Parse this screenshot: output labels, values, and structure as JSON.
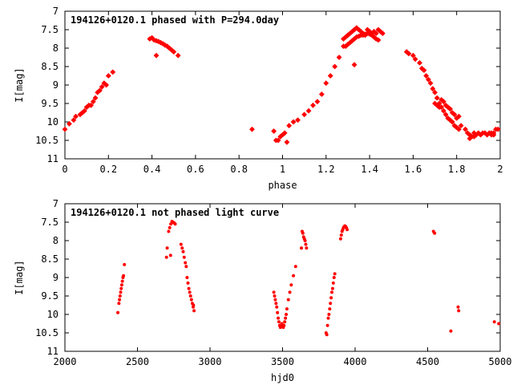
{
  "chart_data": [
    {
      "type": "scatter",
      "title": "194126+0120.1 phased with P=294.0day",
      "xlabel": "phase",
      "ylabel": "I[mag]",
      "xlim": [
        0,
        2
      ],
      "ylim": [
        11,
        7
      ],
      "y_inverted": true,
      "xticks": [
        0,
        0.2,
        0.4,
        0.6,
        0.8,
        1,
        1.2,
        1.4,
        1.6,
        1.8,
        2
      ],
      "xtick_labels": [
        "0",
        "0.2",
        "0.4",
        "0.6",
        "0.8",
        "1",
        "1.2",
        "1.4",
        "1.6",
        "1.8",
        "2"
      ],
      "yticks": [
        7,
        7.5,
        8,
        8.5,
        9,
        9.5,
        10,
        10.5,
        11
      ],
      "ytick_labels": [
        "7",
        "7.5",
        "8",
        "8.5",
        "9",
        "9.5",
        "10",
        "10.5",
        "11"
      ],
      "grid": false,
      "marker_color": "#ff0000",
      "marker": "star",
      "points": [
        [
          0.0,
          10.2
        ],
        [
          0.02,
          10.05
        ],
        [
          0.04,
          9.95
        ],
        [
          0.05,
          9.85
        ],
        [
          0.07,
          9.8
        ],
        [
          0.08,
          9.75
        ],
        [
          0.09,
          9.7
        ],
        [
          0.1,
          9.6
        ],
        [
          0.11,
          9.55
        ],
        [
          0.12,
          9.55
        ],
        [
          0.13,
          9.45
        ],
        [
          0.14,
          9.35
        ],
        [
          0.15,
          9.2
        ],
        [
          0.16,
          9.15
        ],
        [
          0.17,
          9.05
        ],
        [
          0.18,
          8.95
        ],
        [
          0.19,
          9.0
        ],
        [
          0.2,
          8.75
        ],
        [
          0.22,
          8.65
        ],
        [
          0.39,
          7.75
        ],
        [
          0.4,
          7.72
        ],
        [
          0.41,
          7.78
        ],
        [
          0.42,
          7.8
        ],
        [
          0.43,
          7.82
        ],
        [
          0.44,
          7.85
        ],
        [
          0.45,
          7.88
        ],
        [
          0.46,
          7.92
        ],
        [
          0.47,
          7.95
        ],
        [
          0.48,
          8.0
        ],
        [
          0.49,
          8.05
        ],
        [
          0.5,
          8.1
        ],
        [
          0.52,
          8.2
        ],
        [
          0.42,
          8.2
        ],
        [
          0.86,
          10.2
        ],
        [
          0.96,
          10.25
        ],
        [
          0.97,
          10.5
        ],
        [
          0.98,
          10.5
        ],
        [
          0.99,
          10.4
        ],
        [
          1.0,
          10.35
        ],
        [
          1.01,
          10.3
        ],
        [
          1.02,
          10.55
        ],
        [
          1.03,
          10.1
        ],
        [
          1.05,
          10.0
        ],
        [
          1.07,
          9.95
        ],
        [
          1.1,
          9.8
        ],
        [
          1.12,
          9.7
        ],
        [
          1.14,
          9.55
        ],
        [
          1.16,
          9.45
        ],
        [
          1.18,
          9.25
        ],
        [
          1.2,
          8.95
        ],
        [
          1.22,
          8.75
        ],
        [
          1.24,
          8.5
        ],
        [
          1.26,
          8.25
        ],
        [
          1.28,
          7.75
        ],
        [
          1.29,
          7.7
        ],
        [
          1.3,
          7.65
        ],
        [
          1.31,
          7.6
        ],
        [
          1.32,
          7.55
        ],
        [
          1.33,
          7.5
        ],
        [
          1.34,
          7.45
        ],
        [
          1.35,
          7.5
        ],
        [
          1.36,
          7.55
        ],
        [
          1.37,
          7.6
        ],
        [
          1.38,
          7.65
        ],
        [
          1.39,
          7.5
        ],
        [
          1.4,
          7.55
        ],
        [
          1.41,
          7.6
        ],
        [
          1.42,
          7.55
        ],
        [
          1.43,
          7.6
        ],
        [
          1.44,
          7.5
        ],
        [
          1.45,
          7.55
        ],
        [
          1.46,
          7.6
        ],
        [
          1.28,
          7.95
        ],
        [
          1.29,
          7.95
        ],
        [
          1.3,
          7.9
        ],
        [
          1.31,
          7.85
        ],
        [
          1.32,
          7.8
        ],
        [
          1.33,
          7.75
        ],
        [
          1.34,
          7.7
        ],
        [
          1.35,
          7.68
        ],
        [
          1.36,
          7.65
        ],
        [
          1.37,
          7.65
        ],
        [
          1.38,
          7.62
        ],
        [
          1.39,
          7.6
        ],
        [
          1.4,
          7.62
        ],
        [
          1.41,
          7.65
        ],
        [
          1.42,
          7.7
        ],
        [
          1.43,
          7.75
        ],
        [
          1.44,
          7.78
        ],
        [
          1.33,
          8.45
        ],
        [
          1.57,
          8.1
        ],
        [
          1.58,
          8.15
        ],
        [
          1.6,
          8.2
        ],
        [
          1.61,
          8.3
        ],
        [
          1.63,
          8.4
        ],
        [
          1.64,
          8.55
        ],
        [
          1.65,
          8.6
        ],
        [
          1.66,
          8.75
        ],
        [
          1.67,
          8.85
        ],
        [
          1.68,
          8.95
        ],
        [
          1.69,
          9.1
        ],
        [
          1.7,
          9.2
        ],
        [
          1.71,
          9.35
        ],
        [
          1.72,
          9.5
        ],
        [
          1.73,
          9.6
        ],
        [
          1.74,
          9.7
        ],
        [
          1.75,
          9.8
        ],
        [
          1.76,
          9.9
        ],
        [
          1.77,
          9.95
        ],
        [
          1.78,
          10.0
        ],
        [
          1.79,
          10.1
        ],
        [
          1.8,
          10.15
        ],
        [
          1.81,
          10.2
        ],
        [
          1.82,
          10.1
        ],
        [
          1.7,
          9.5
        ],
        [
          1.71,
          9.55
        ],
        [
          1.72,
          9.6
        ],
        [
          1.73,
          9.4
        ],
        [
          1.74,
          9.45
        ],
        [
          1.75,
          9.55
        ],
        [
          1.76,
          9.6
        ],
        [
          1.77,
          9.65
        ],
        [
          1.78,
          9.75
        ],
        [
          1.79,
          9.8
        ],
        [
          1.8,
          9.9
        ],
        [
          1.81,
          9.85
        ],
        [
          1.84,
          10.2
        ],
        [
          1.85,
          10.3
        ],
        [
          1.86,
          10.35
        ],
        [
          1.87,
          10.4
        ],
        [
          1.88,
          10.3
        ],
        [
          1.89,
          10.35
        ],
        [
          1.9,
          10.3
        ],
        [
          1.91,
          10.35
        ],
        [
          1.92,
          10.3
        ],
        [
          1.93,
          10.3
        ],
        [
          1.94,
          10.35
        ],
        [
          1.95,
          10.3
        ],
        [
          1.96,
          10.3
        ],
        [
          1.97,
          10.35
        ],
        [
          1.98,
          10.2
        ],
        [
          1.99,
          10.2
        ],
        [
          1.86,
          10.45
        ],
        [
          1.88,
          10.4
        ],
        [
          1.96,
          10.35
        ],
        [
          1.97,
          10.3
        ]
      ]
    },
    {
      "type": "scatter",
      "title": "194126+0120.1 not phased light curve",
      "xlabel": "hjd0",
      "ylabel": "I[mag]",
      "xlim": [
        2000,
        5000
      ],
      "ylim": [
        11,
        7
      ],
      "y_inverted": true,
      "xticks": [
        2000,
        2500,
        3000,
        3500,
        4000,
        4500,
        5000
      ],
      "xtick_labels": [
        "2000",
        "2500",
        "3000",
        "3500",
        "4000",
        "4500",
        "5000"
      ],
      "yticks": [
        7,
        7.5,
        8,
        8.5,
        9,
        9.5,
        10,
        10.5,
        11
      ],
      "ytick_labels": [
        "7",
        "7.5",
        "8",
        "8.5",
        "9",
        "9.5",
        "10",
        "10.5",
        "11"
      ],
      "grid": false,
      "marker_color": "#ff0000",
      "marker": "dot",
      "points": [
        [
          2365,
          9.95
        ],
        [
          2372,
          9.7
        ],
        [
          2376,
          9.6
        ],
        [
          2380,
          9.5
        ],
        [
          2384,
          9.4
        ],
        [
          2388,
          9.3
        ],
        [
          2392,
          9.2
        ],
        [
          2396,
          9.1
        ],
        [
          2400,
          9.0
        ],
        [
          2404,
          8.95
        ],
        [
          2410,
          8.65
        ],
        [
          2700,
          8.45
        ],
        [
          2705,
          8.2
        ],
        [
          2715,
          7.75
        ],
        [
          2722,
          7.65
        ],
        [
          2730,
          7.55
        ],
        [
          2738,
          7.48
        ],
        [
          2745,
          7.5
        ],
        [
          2752,
          7.52
        ],
        [
          2760,
          7.55
        ],
        [
          2728,
          8.4
        ],
        [
          2800,
          8.1
        ],
        [
          2808,
          8.2
        ],
        [
          2815,
          8.3
        ],
        [
          2822,
          8.45
        ],
        [
          2830,
          8.6
        ],
        [
          2836,
          8.7
        ],
        [
          2842,
          9.0
        ],
        [
          2848,
          9.15
        ],
        [
          2854,
          9.3
        ],
        [
          2860,
          9.4
        ],
        [
          2866,
          9.5
        ],
        [
          2872,
          9.6
        ],
        [
          2878,
          9.7
        ],
        [
          2884,
          9.8
        ],
        [
          2890,
          9.9
        ],
        [
          2886,
          9.75
        ],
        [
          3440,
          9.4
        ],
        [
          3445,
          9.5
        ],
        [
          3450,
          9.6
        ],
        [
          3455,
          9.7
        ],
        [
          3460,
          9.8
        ],
        [
          3465,
          9.95
        ],
        [
          3470,
          10.1
        ],
        [
          3475,
          10.2
        ],
        [
          3480,
          10.3
        ],
        [
          3485,
          10.35
        ],
        [
          3490,
          10.3
        ],
        [
          3495,
          10.25
        ],
        [
          3500,
          10.3
        ],
        [
          3505,
          10.35
        ],
        [
          3510,
          10.3
        ],
        [
          3515,
          10.2
        ],
        [
          3520,
          10.1
        ],
        [
          3525,
          10.0
        ],
        [
          3530,
          9.85
        ],
        [
          3540,
          9.6
        ],
        [
          3550,
          9.4
        ],
        [
          3560,
          9.2
        ],
        [
          3575,
          8.95
        ],
        [
          3590,
          8.7
        ],
        [
          3630,
          8.2
        ],
        [
          3635,
          7.75
        ],
        [
          3640,
          7.8
        ],
        [
          3645,
          7.9
        ],
        [
          3650,
          7.95
        ],
        [
          3655,
          8.0
        ],
        [
          3660,
          8.1
        ],
        [
          3665,
          8.2
        ],
        [
          3800,
          10.5
        ],
        [
          3805,
          10.55
        ],
        [
          3810,
          10.3
        ],
        [
          3815,
          10.1
        ],
        [
          3820,
          10.0
        ],
        [
          3825,
          9.85
        ],
        [
          3830,
          9.7
        ],
        [
          3835,
          9.55
        ],
        [
          3840,
          9.4
        ],
        [
          3845,
          9.3
        ],
        [
          3850,
          9.15
        ],
        [
          3855,
          9.0
        ],
        [
          3860,
          8.9
        ],
        [
          3900,
          7.95
        ],
        [
          3905,
          7.85
        ],
        [
          3910,
          7.75
        ],
        [
          3915,
          7.7
        ],
        [
          3920,
          7.65
        ],
        [
          3925,
          7.62
        ],
        [
          3930,
          7.6
        ],
        [
          3935,
          7.62
        ],
        [
          3940,
          7.65
        ],
        [
          3945,
          7.7
        ],
        [
          4540,
          7.75
        ],
        [
          4548,
          7.8
        ],
        [
          4660,
          10.45
        ],
        [
          4710,
          9.8
        ],
        [
          4714,
          9.9
        ],
        [
          4960,
          10.2
        ],
        [
          4990,
          10.25
        ]
      ]
    }
  ]
}
